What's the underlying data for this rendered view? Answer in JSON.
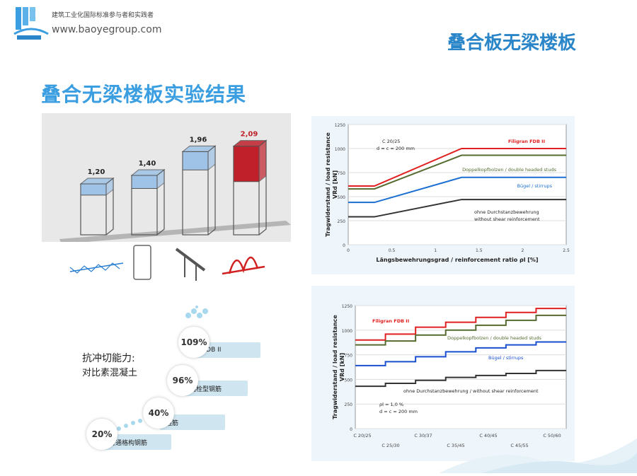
{
  "header": {
    "slogan": "建筑工业化国际标准参与者和实践者",
    "website": "www.baoyegroup.com",
    "page_title": "叠合板无梁楼板"
  },
  "section_title": "叠合无梁楼板实验结果",
  "colors": {
    "accent": "#3a9ee0",
    "title_blue": "#2a86c8",
    "red": "#e02020",
    "green": "#556b2f",
    "blue": "#1a6fd0",
    "black": "#333333"
  },
  "chart_data": [
    {
      "type": "bar",
      "categories": [
        "",
        "",
        "",
        ""
      ],
      "values": [
        1.2,
        1.4,
        1.96,
        2.09
      ],
      "value_labels": [
        "1,20",
        "1,40",
        "1,96",
        "2,09"
      ],
      "title": "",
      "xlabel": "",
      "ylabel": "",
      "colors": [
        "#9fc3e6",
        "#9fc3e6",
        "#9fc3e6",
        "#c0202a"
      ],
      "ylim": [
        0,
        2.5
      ]
    },
    {
      "type": "line",
      "title": "",
      "xlabel": "Längsbewehrungsgrad / reinforcement ratio ρl [%]",
      "ylabel_line1": "Tragwiderstand / load resistance",
      "ylabel_line2": "VRd [kN]",
      "xlim": [
        0,
        2.5
      ],
      "ylim": [
        0,
        1250
      ],
      "x_ticks": [
        "0",
        "0.5",
        "1",
        "1.5",
        "2",
        "2.5"
      ],
      "y_ticks": [
        "0",
        "250",
        "500",
        "750",
        "1000",
        "1250"
      ],
      "annotation_line1": "C 20/25",
      "annotation_line2": "d = c = 200 mm",
      "series": [
        {
          "name": "Filigran FDB II",
          "color": "#e02020",
          "x": [
            0,
            0.3,
            1.3,
            2.5
          ],
          "y": [
            610,
            610,
            1000,
            1000
          ]
        },
        {
          "name": "Doppelkopfbolzen / double headed studs",
          "color": "#556b2f",
          "x": [
            0,
            0.3,
            1.3,
            2.5
          ],
          "y": [
            580,
            580,
            930,
            930
          ]
        },
        {
          "name": "Bügel / stirrups",
          "color": "#1a6fd0",
          "x": [
            0,
            0.3,
            1.3,
            2.5
          ],
          "y": [
            440,
            440,
            700,
            700
          ]
        },
        {
          "name": "ohne Durchstanzbewehrung",
          "name_line2": "without shear reinforcement",
          "color": "#333333",
          "x": [
            0,
            0.3,
            1.3,
            2.5
          ],
          "y": [
            290,
            290,
            470,
            470
          ]
        }
      ]
    },
    {
      "type": "line",
      "title": "",
      "xlabel": "",
      "ylabel_line1": "Tragwiderstand / load resistance",
      "ylabel_line2": "VRd [kN]",
      "ylim": [
        0,
        1250
      ],
      "y_ticks": [
        "0",
        "250",
        "500",
        "750",
        "1000",
        "1250"
      ],
      "categories_top": [
        "C 20/25",
        "C 30/37",
        "C 40/45",
        "C 50/60"
      ],
      "categories_bottom": [
        "C 25/30",
        "C 35/45",
        "C 45/55"
      ],
      "annotation_line1": "ρl = 1,0 %",
      "annotation_line2": "d = c = 200 mm",
      "steps": 7,
      "series": [
        {
          "name": "Filigran FDB II",
          "color": "#e02020",
          "y": [
            900,
            960,
            1030,
            1080,
            1130,
            1180,
            1220
          ]
        },
        {
          "name": "Doppelkopfbolzen / double headed studs",
          "color": "#556b2f",
          "y": [
            850,
            890,
            950,
            1000,
            1050,
            1100,
            1150
          ]
        },
        {
          "name": "Bügel / stirrups",
          "color": "#1a4fd0",
          "y": [
            640,
            680,
            730,
            780,
            820,
            850,
            880
          ]
        },
        {
          "name": "ohne Durchstanzbewehrung / without shear reinforcement",
          "color": "#333333",
          "y": [
            430,
            460,
            490,
            520,
            540,
            560,
            590
          ]
        }
      ]
    }
  ],
  "shear": {
    "title": "抗冲切能力:",
    "subtitle": "对比素混凝土",
    "items": [
      {
        "value": "20%",
        "label": "普通格构钢筋"
      },
      {
        "value": "40%",
        "label": "箍筋"
      },
      {
        "value": "96%",
        "label": "锚栓型钢筋"
      },
      {
        "value": "109%",
        "label": "FDB II"
      }
    ]
  }
}
